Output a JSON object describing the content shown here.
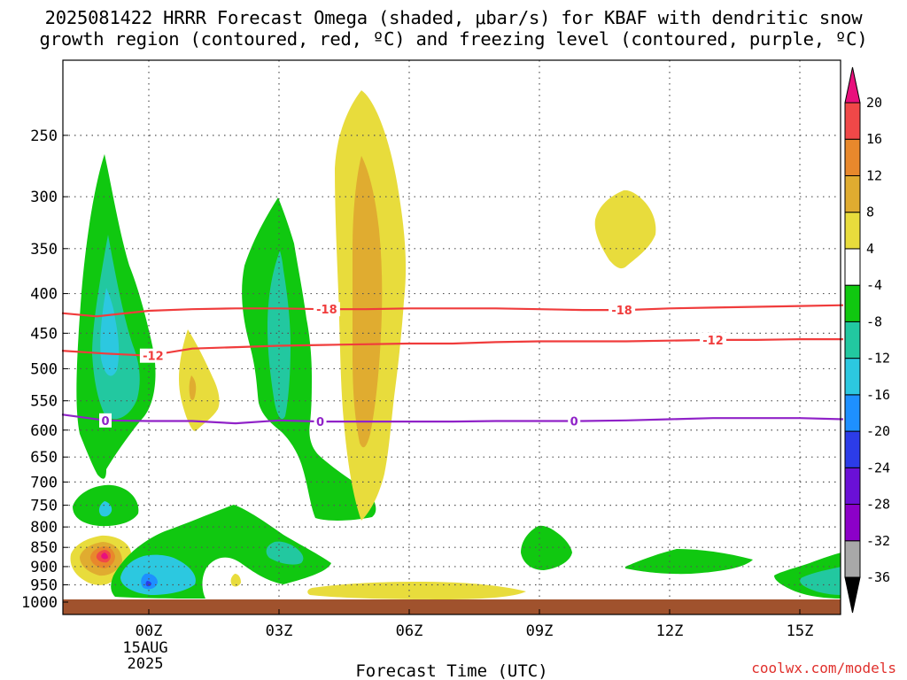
{
  "chart_data": {
    "type": "heatmap",
    "title_lines": [
      "2025081422 HRRR Forecast Omega (shaded, μbar/s) for KBAF with dendritic snow",
      "growth region (contoured, red, ºC) and freezing level (contoured, purple, ºC)"
    ],
    "xlabel": "Forecast Time (UTC)",
    "ylabel": "",
    "x_ticks": [
      {
        "h": 0,
        "label": "00Z",
        "sub": [
          "15AUG",
          "2025"
        ]
      },
      {
        "h": 3,
        "label": "03Z",
        "sub": []
      },
      {
        "h": 6,
        "label": "06Z",
        "sub": []
      },
      {
        "h": 9,
        "label": "09Z",
        "sub": []
      },
      {
        "h": 12,
        "label": "12Z",
        "sub": []
      },
      {
        "h": 15,
        "label": "15Z",
        "sub": []
      }
    ],
    "xlim": [
      -2,
      16
    ],
    "y_ticks": [
      250,
      300,
      350,
      400,
      450,
      500,
      550,
      600,
      650,
      700,
      750,
      800,
      850,
      900,
      950,
      1000
    ],
    "ylim_hPa": [
      200,
      1000
    ],
    "y_scale": "log-pressure",
    "grid": true,
    "colorbar": {
      "levels": [
        "-36",
        "-32",
        "-28",
        "-24",
        "-20",
        "-16",
        "-12",
        "-8",
        "-4",
        "4",
        "8",
        "12",
        "16",
        "20"
      ],
      "colors": [
        "#000000",
        "#a8a8a8",
        "#8c00c8",
        "#6a10d6",
        "#2c3ce8",
        "#1e90ff",
        "#2cc8e0",
        "#22c8a0",
        "#10c810",
        "#ffffff",
        "#e8dc3c",
        "#e0ac30",
        "#e8882c",
        "#f04848",
        "#e8107c"
      ]
    },
    "contours": [
      {
        "name": "-18",
        "color": "#f03c3c",
        "points": [
          [
            -2,
            424
          ],
          [
            -1.2,
            428
          ],
          [
            0,
            421
          ],
          [
            1,
            419
          ],
          [
            2,
            418
          ],
          [
            3,
            418
          ],
          [
            4,
            419
          ],
          [
            5,
            419
          ],
          [
            6,
            418
          ],
          [
            7,
            418
          ],
          [
            8,
            418
          ],
          [
            9,
            419
          ],
          [
            10,
            420
          ],
          [
            11,
            420
          ],
          [
            12,
            418
          ],
          [
            13,
            417
          ],
          [
            14,
            416
          ],
          [
            15,
            415
          ],
          [
            16,
            414
          ]
        ],
        "labels": [
          [
            4.1,
            419
          ],
          [
            10.9,
            420
          ]
        ]
      },
      {
        "name": "-12",
        "color": "#f03c3c",
        "points": [
          [
            -2,
            474
          ],
          [
            -1,
            478
          ],
          [
            0,
            481
          ],
          [
            1,
            471
          ],
          [
            2,
            469
          ],
          [
            3,
            467
          ],
          [
            4,
            466
          ],
          [
            5,
            465
          ],
          [
            6,
            464
          ],
          [
            7,
            464
          ],
          [
            8,
            462
          ],
          [
            9,
            461
          ],
          [
            10,
            461
          ],
          [
            11,
            461
          ],
          [
            12,
            460
          ],
          [
            13,
            459
          ],
          [
            14,
            459
          ],
          [
            15,
            458
          ],
          [
            16,
            458
          ]
        ],
        "labels": [
          [
            0.1,
            481
          ],
          [
            13,
            459
          ]
        ]
      },
      {
        "name": "0",
        "color": "#9022c8",
        "points": [
          [
            -2,
            573
          ],
          [
            -1,
            583
          ],
          [
            0,
            584
          ],
          [
            1,
            584
          ],
          [
            2,
            588
          ],
          [
            3,
            583
          ],
          [
            4,
            585
          ],
          [
            5,
            585
          ],
          [
            6,
            585
          ],
          [
            7,
            585
          ],
          [
            8,
            584
          ],
          [
            9,
            584
          ],
          [
            10,
            584
          ],
          [
            11,
            583
          ],
          [
            12,
            581
          ],
          [
            13,
            579
          ],
          [
            14,
            579
          ],
          [
            15,
            579
          ],
          [
            16,
            581
          ]
        ],
        "labels": [
          [
            -1,
            583
          ],
          [
            3.95,
            585
          ],
          [
            9.8,
            584
          ]
        ]
      }
    ]
  },
  "credit": "coolwx.com/models"
}
